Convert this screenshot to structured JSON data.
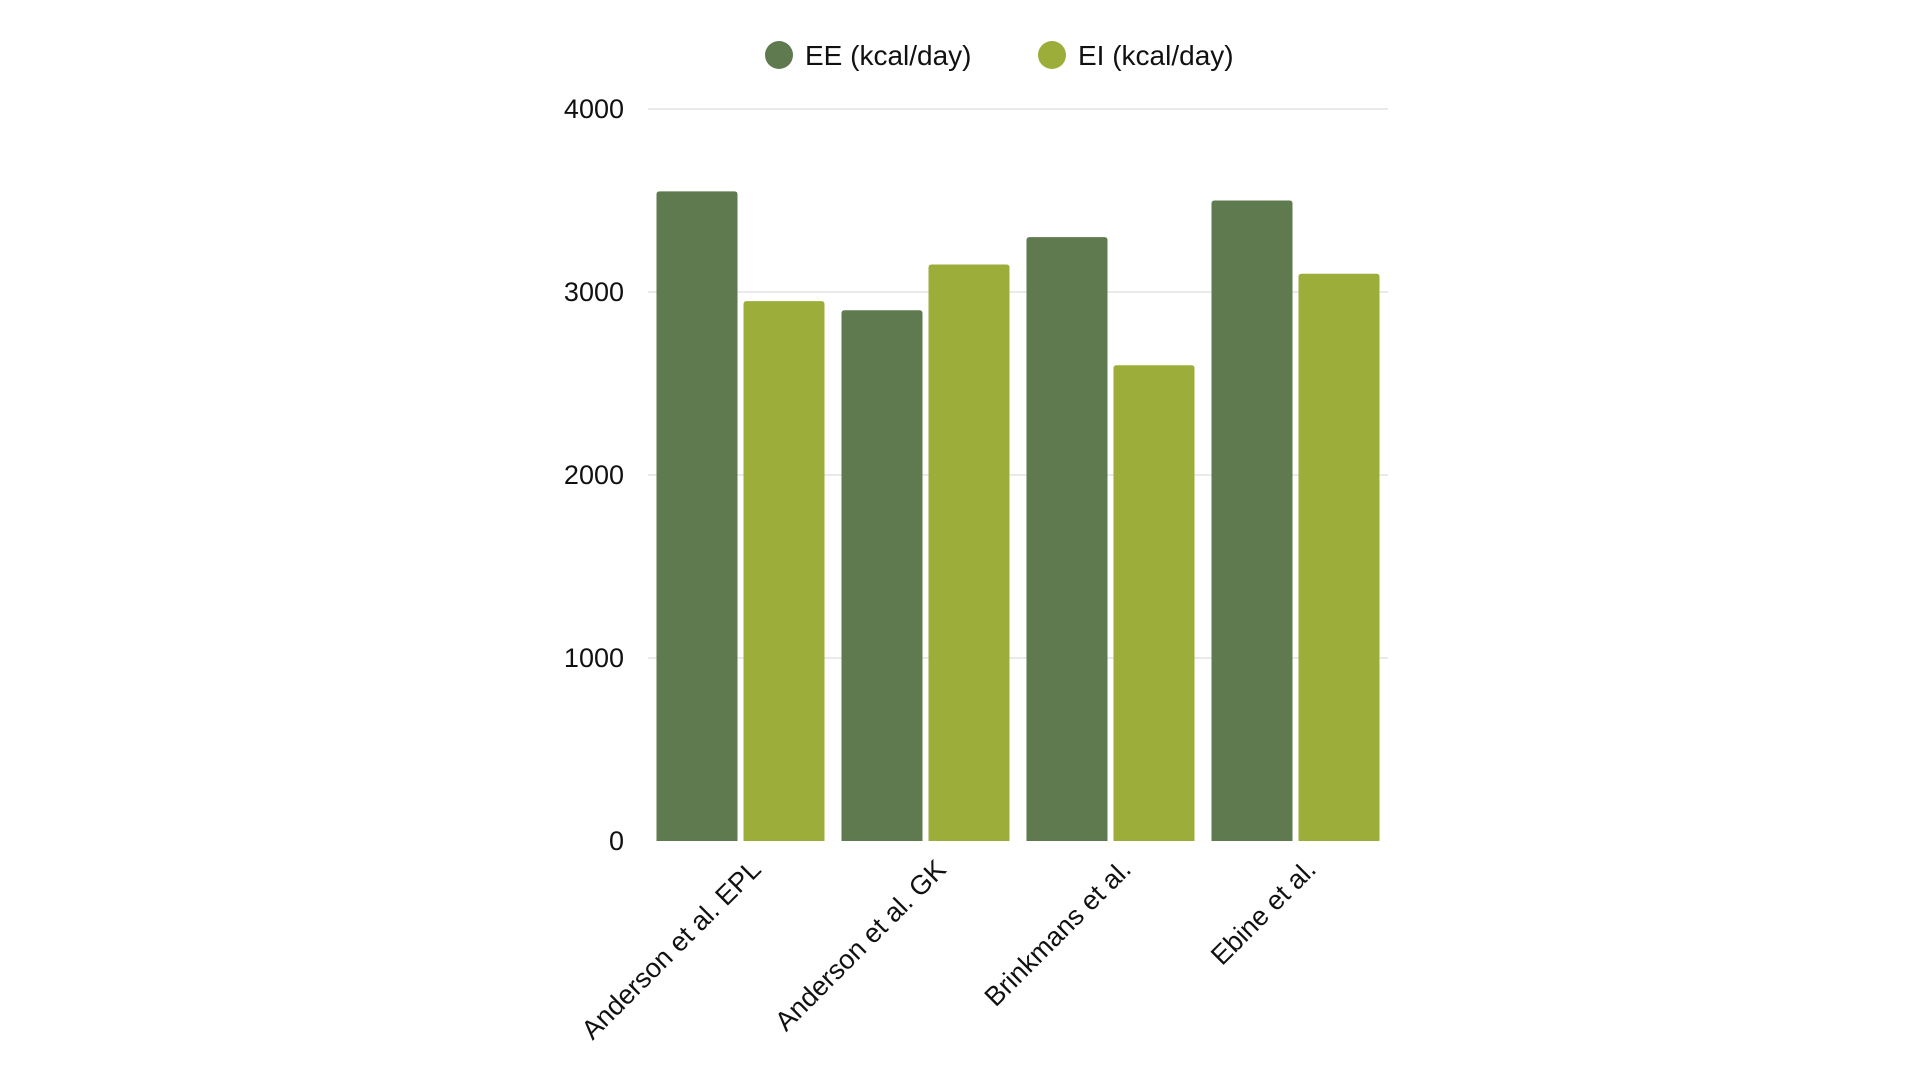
{
  "chart_data": {
    "type": "bar",
    "title": "",
    "xlabel": "",
    "ylabel": "",
    "ylim": [
      0,
      4000
    ],
    "yticks": [
      0,
      1000,
      2000,
      3000,
      4000
    ],
    "grid": true,
    "legend_position": "top-center",
    "categories": [
      "Anderson et al. EPL",
      "Anderson et al. GK",
      "Brinkmans et al.",
      "Ebine et al."
    ],
    "series": [
      {
        "name": "EE (kcal/day)",
        "color": "#5e7a4e",
        "values": [
          3550,
          2900,
          3300,
          3500
        ]
      },
      {
        "name": "EI (kcal/day)",
        "color": "#9cae39",
        "values": [
          2950,
          3150,
          2600,
          3100
        ]
      }
    ]
  }
}
